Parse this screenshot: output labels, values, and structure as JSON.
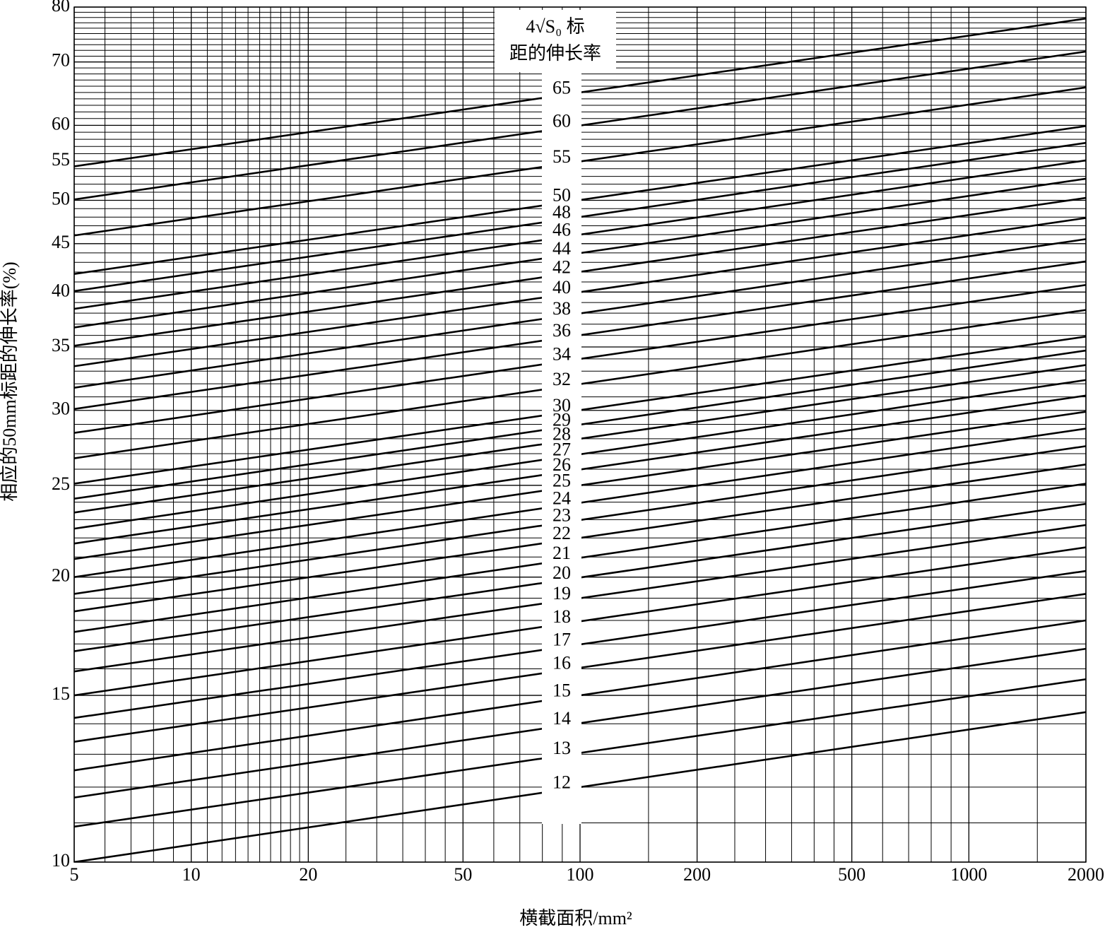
{
  "chart_data": {
    "type": "line",
    "x_label": "横截面积/mm²",
    "y_label": "相应的50mm标距的伸长率(%)",
    "annotation": [
      "4√S₀ 标",
      "距的伸长率"
    ],
    "log_x": true,
    "log_y": true,
    "grid": true,
    "color": "#000000",
    "x": [
      5,
      2000
    ],
    "xlim": [
      5,
      2000
    ],
    "xticks": [
      5,
      10,
      20,
      50,
      100,
      200,
      500,
      1000,
      2000
    ],
    "xminorticks": [
      6,
      7,
      8,
      9,
      11,
      12,
      13,
      14,
      15,
      16,
      17,
      18,
      19,
      25,
      30,
      35,
      40,
      45,
      60,
      70,
      80,
      90,
      150,
      250,
      300,
      350,
      400,
      450,
      600,
      700,
      800,
      900,
      1500
    ],
    "ylim": [
      10,
      80
    ],
    "yticks": [
      10,
      15,
      20,
      25,
      30,
      35,
      40,
      45,
      50,
      55,
      60,
      70,
      80
    ],
    "yminorticks": [
      11,
      12,
      13,
      14,
      16,
      17,
      18,
      19,
      21,
      22,
      23,
      24,
      26,
      27,
      28,
      29,
      31,
      32,
      33,
      34,
      36,
      37,
      38,
      39,
      41,
      42,
      43,
      44,
      46,
      47,
      48,
      49,
      51,
      52,
      53,
      54,
      56,
      57,
      58,
      59,
      61,
      62,
      63,
      64,
      65,
      66,
      67,
      68,
      69,
      71,
      72,
      73,
      74,
      75,
      76,
      77,
      78,
      79
    ],
    "series": [
      {
        "name": "12",
        "values": [
          10.0,
          14.4
        ]
      },
      {
        "name": "13",
        "values": [
          10.9,
          15.6
        ]
      },
      {
        "name": "14",
        "values": [
          11.7,
          16.8
        ]
      },
      {
        "name": "15",
        "values": [
          12.5,
          18.0
        ]
      },
      {
        "name": "16",
        "values": [
          13.4,
          19.2
        ]
      },
      {
        "name": "17",
        "values": [
          14.2,
          20.3
        ]
      },
      {
        "name": "18",
        "values": [
          15.0,
          21.5
        ]
      },
      {
        "name": "19",
        "values": [
          15.9,
          22.7
        ]
      },
      {
        "name": "20",
        "values": [
          16.7,
          23.9
        ]
      },
      {
        "name": "21",
        "values": [
          17.5,
          25.1
        ]
      },
      {
        "name": "22",
        "values": [
          18.4,
          26.3
        ]
      },
      {
        "name": "23",
        "values": [
          19.2,
          27.5
        ]
      },
      {
        "name": "24",
        "values": [
          20.0,
          28.7
        ]
      },
      {
        "name": "25",
        "values": [
          20.9,
          29.9
        ]
      },
      {
        "name": "26",
        "values": [
          21.7,
          31.1
        ]
      },
      {
        "name": "27",
        "values": [
          22.5,
          32.3
        ]
      },
      {
        "name": "28",
        "values": [
          23.4,
          33.5
        ]
      },
      {
        "name": "29",
        "values": [
          24.2,
          34.7
        ]
      },
      {
        "name": "30",
        "values": [
          25.1,
          35.9
        ]
      },
      {
        "name": "32",
        "values": [
          26.7,
          38.3
        ]
      },
      {
        "name": "34",
        "values": [
          28.4,
          40.7
        ]
      },
      {
        "name": "36",
        "values": [
          30.1,
          43.1
        ]
      },
      {
        "name": "38",
        "values": [
          31.7,
          45.5
        ]
      },
      {
        "name": "40",
        "values": [
          33.4,
          47.9
        ]
      },
      {
        "name": "42",
        "values": [
          35.1,
          50.3
        ]
      },
      {
        "name": "44",
        "values": [
          36.7,
          52.7
        ]
      },
      {
        "name": "46",
        "values": [
          38.4,
          55.1
        ]
      },
      {
        "name": "48",
        "values": [
          40.1,
          57.5
        ]
      },
      {
        "name": "50",
        "values": [
          41.8,
          59.9
        ]
      },
      {
        "name": "55",
        "values": [
          45.9,
          65.8
        ]
      },
      {
        "name": "60",
        "values": [
          50.1,
          71.8
        ]
      },
      {
        "name": "65",
        "values": [
          54.3,
          77.8
        ]
      }
    ]
  }
}
